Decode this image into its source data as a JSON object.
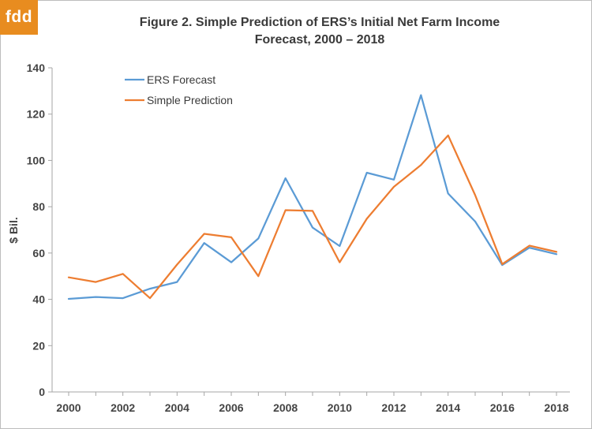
{
  "logo": {
    "text": "fdd"
  },
  "chart_data": {
    "type": "line",
    "title_line1": "Figure  2. Simple Prediction  of ERS’s Initial  Net Farm Income",
    "title_line2": "Forecast,  2000 – 2018",
    "xlabel": "",
    "ylabel": "$ Bil.",
    "x": [
      2000,
      2001,
      2002,
      2003,
      2004,
      2005,
      2006,
      2007,
      2008,
      2009,
      2010,
      2011,
      2012,
      2013,
      2014,
      2015,
      2016,
      2017,
      2018
    ],
    "x_tick_labels": [
      "2000",
      "2002",
      "2004",
      "2006",
      "2008",
      "2010",
      "2012",
      "2014",
      "2016",
      "2018"
    ],
    "y_tick_labels": [
      "0",
      "20",
      "40",
      "60",
      "80",
      "100",
      "120",
      "140"
    ],
    "ylim": [
      0,
      140
    ],
    "xlim": [
      2000,
      2018
    ],
    "grid": false,
    "legend_position": "top-left",
    "series": [
      {
        "name": "ERS Forecast",
        "color": "#5b9bd5",
        "values": [
          40.2,
          41,
          40.5,
          44.6,
          47.5,
          64.3,
          56,
          66.3,
          92.3,
          71,
          63,
          94.7,
          91.7,
          128.2,
          85.7,
          73.6,
          54.8,
          62.3,
          59.5
        ]
      },
      {
        "name": "Simple Prediction",
        "color": "#ed7d31",
        "values": [
          49.5,
          47.5,
          51,
          40.5,
          55,
          68.3,
          66.8,
          50,
          78.5,
          78.2,
          56,
          74.8,
          88.6,
          98,
          110.8,
          85,
          55.2,
          63.2,
          60.5
        ]
      }
    ]
  }
}
